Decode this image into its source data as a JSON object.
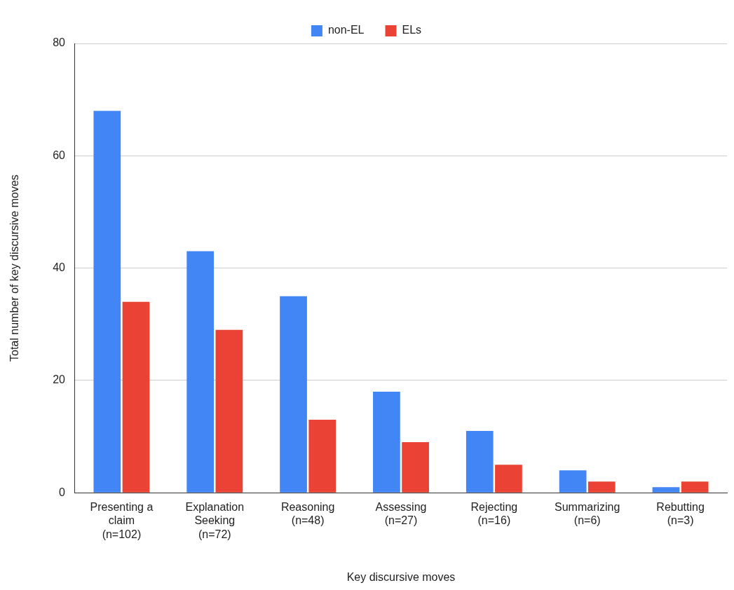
{
  "chart_data": {
    "type": "bar",
    "xlabel": "Key discursive moves",
    "ylabel": "Total number of key discursive moves",
    "categories": [
      "Presenting a claim (n=102)",
      "Explanation Seeking (n=72)",
      "Reasoning (n=48)",
      "Assessing (n=27)",
      "Rejecting (n=16)",
      "Summarizing (n=6)",
      "Rebutting (n=3)"
    ],
    "series": [
      {
        "name": "non-EL",
        "color": "#4285f4",
        "values": [
          68,
          43,
          35,
          18,
          11,
          4,
          1
        ]
      },
      {
        "name": "ELs",
        "color": "#ea4335",
        "values": [
          34,
          29,
          13,
          9,
          5,
          2,
          2
        ]
      }
    ],
    "ylim": [
      0,
      80
    ],
    "yticks": [
      0,
      20,
      40,
      60,
      80
    ],
    "grid": "y",
    "legend": "top"
  }
}
